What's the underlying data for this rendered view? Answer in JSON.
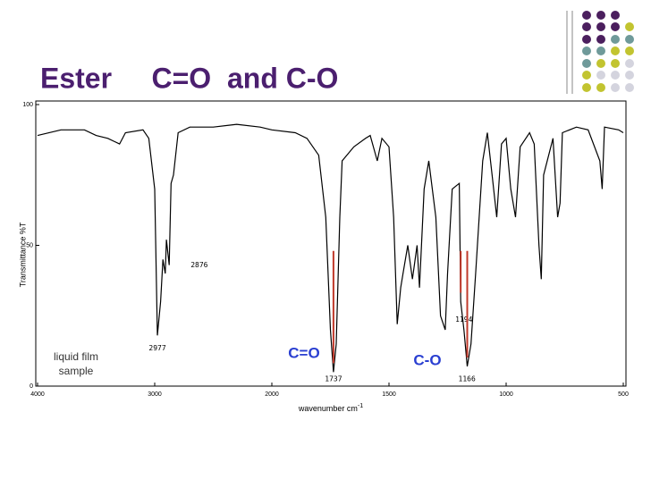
{
  "chart_data": {
    "type": "line",
    "title": "Ester     C=O  and C-O",
    "y_label": "Transmittance %T",
    "x_label": "wavenumber cm",
    "x_label_superscript": "-1",
    "x": [
      4000,
      3800,
      3600,
      3500,
      3400,
      3300,
      3250,
      3100,
      3050,
      3000,
      2977,
      2950,
      2930,
      2910,
      2900,
      2876,
      2860,
      2840,
      2800,
      2700,
      2500,
      2300,
      2100,
      2000,
      1900,
      1850,
      1800,
      1770,
      1750,
      1737,
      1725,
      1710,
      1700,
      1650,
      1600,
      1580,
      1550,
      1530,
      1500,
      1480,
      1465,
      1450,
      1440,
      1420,
      1400,
      1380,
      1370,
      1350,
      1330,
      1300,
      1280,
      1260,
      1250,
      1230,
      1200,
      1194,
      1180,
      1166,
      1150,
      1130,
      1100,
      1080,
      1060,
      1040,
      1020,
      1000,
      980,
      960,
      940,
      900,
      880,
      860,
      850,
      840,
      800,
      780,
      770,
      760,
      700,
      650,
      600,
      590,
      580,
      520,
      500
    ],
    "values": [
      89,
      91,
      91,
      89,
      88,
      86,
      90,
      91,
      88,
      70,
      18,
      30,
      45,
      40,
      52,
      43,
      72,
      75,
      90,
      92,
      92,
      93,
      92,
      91,
      90,
      88,
      82,
      60,
      20,
      5,
      15,
      60,
      80,
      85,
      88,
      89,
      80,
      88,
      85,
      60,
      22,
      35,
      40,
      50,
      38,
      50,
      35,
      70,
      80,
      60,
      25,
      20,
      40,
      70,
      72,
      30,
      20,
      7,
      15,
      40,
      80,
      90,
      75,
      60,
      86,
      88,
      70,
      60,
      85,
      90,
      86,
      50,
      38,
      75,
      88,
      60,
      65,
      90,
      92,
      91,
      80,
      70,
      92,
      91,
      90
    ],
    "color": "#000000",
    "xlim": [
      4000,
      500
    ],
    "xticks": [
      4000,
      3000,
      2000,
      1500,
      1000,
      500
    ],
    "ylim": [
      0,
      100
    ],
    "yticks": [
      0,
      50,
      100
    ],
    "peak_labels": [
      2876,
      2977,
      1737,
      1194,
      1166
    ],
    "peak_marker_color": "#c0392b",
    "annotations": [
      "C=O",
      "C-O",
      "liquid film",
      "sample"
    ]
  }
}
